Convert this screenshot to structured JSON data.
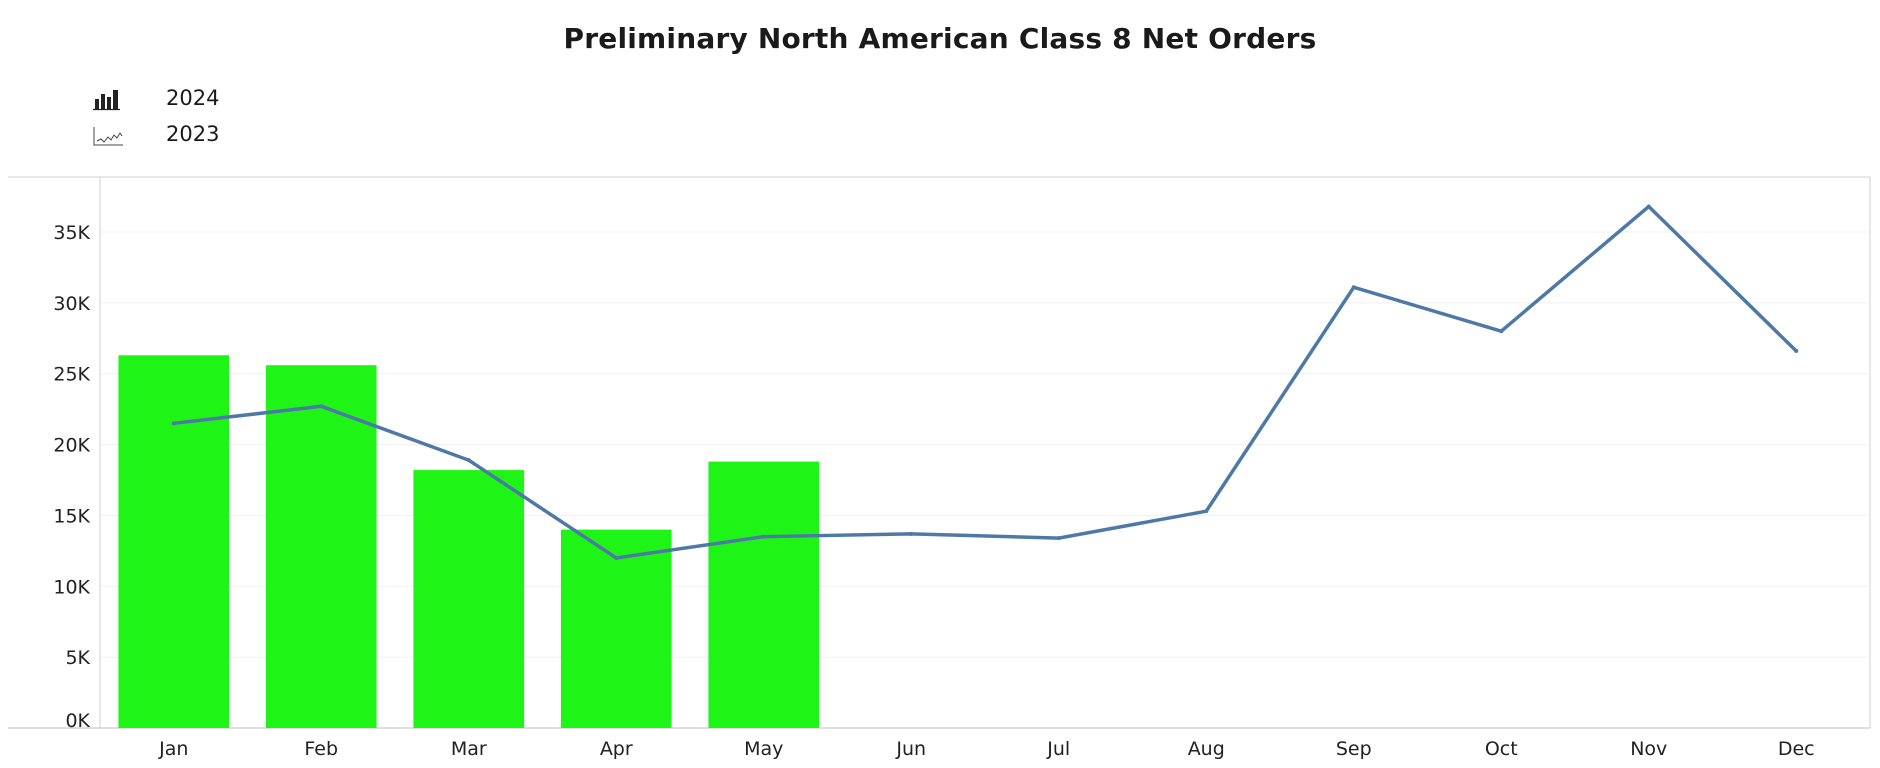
{
  "chart_data": {
    "type": "bar+line",
    "title": "Preliminary North American Class 8 Net Orders",
    "categories": [
      "Jan",
      "Feb",
      "Mar",
      "Apr",
      "May",
      "Jun",
      "Jul",
      "Aug",
      "Sep",
      "Oct",
      "Nov",
      "Dec"
    ],
    "series": [
      {
        "name": "2024",
        "type": "bar",
        "color": "#1ef516",
        "values": [
          26300,
          25600,
          18200,
          14000,
          18800,
          null,
          null,
          null,
          null,
          null,
          null,
          null
        ]
      },
      {
        "name": "2023",
        "type": "line",
        "color": "#4e79a7",
        "values": [
          21500,
          22700,
          18900,
          12000,
          13500,
          13700,
          13400,
          15300,
          31100,
          28000,
          36800,
          26600
        ]
      }
    ],
    "y_ticks": [
      {
        "value": 0,
        "label": "0K"
      },
      {
        "value": 5000,
        "label": "5K"
      },
      {
        "value": 10000,
        "label": "10K"
      },
      {
        "value": 15000,
        "label": "15K"
      },
      {
        "value": 20000,
        "label": "20K"
      },
      {
        "value": 25000,
        "label": "25K"
      },
      {
        "value": 30000,
        "label": "30K"
      },
      {
        "value": 35000,
        "label": "35K"
      }
    ],
    "ylim": [
      0,
      38000
    ],
    "xlabel": "",
    "ylabel": "",
    "grid": true,
    "legend_position": "top-left"
  },
  "icons": {
    "bar": "bar-chart-icon",
    "line": "line-chart-icon"
  }
}
